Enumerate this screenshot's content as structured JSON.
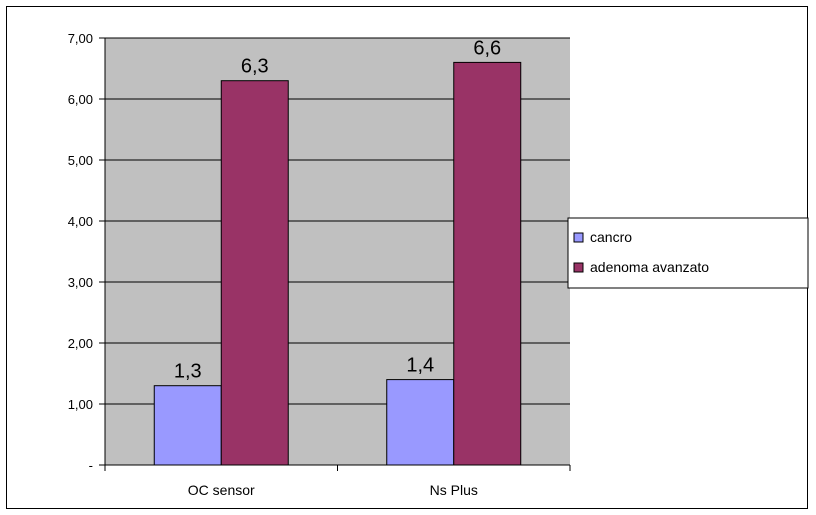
{
  "chart_data": {
    "type": "bar",
    "categories": [
      "OC sensor",
      "Ns Plus"
    ],
    "series": [
      {
        "name": "cancro",
        "values": [
          1.3,
          1.4
        ],
        "labels": [
          "1,3",
          "1,4"
        ],
        "color": "#9999ff"
      },
      {
        "name": "adenoma avanzato",
        "values": [
          6.3,
          6.6
        ],
        "labels": [
          "6,3",
          "6,6"
        ],
        "color": "#993366"
      }
    ],
    "ylim": [
      0,
      7
    ],
    "yticks": [
      0,
      1,
      2,
      3,
      4,
      5,
      6,
      7
    ],
    "ytick_labels": [
      "-",
      "1,00",
      "2,00",
      "3,00",
      "4,00",
      "5,00",
      "6,00",
      "7,00"
    ],
    "grid": true,
    "plot_background": "#c0c0c0",
    "legend_position": "right",
    "title": "",
    "xlabel": "",
    "ylabel": ""
  }
}
